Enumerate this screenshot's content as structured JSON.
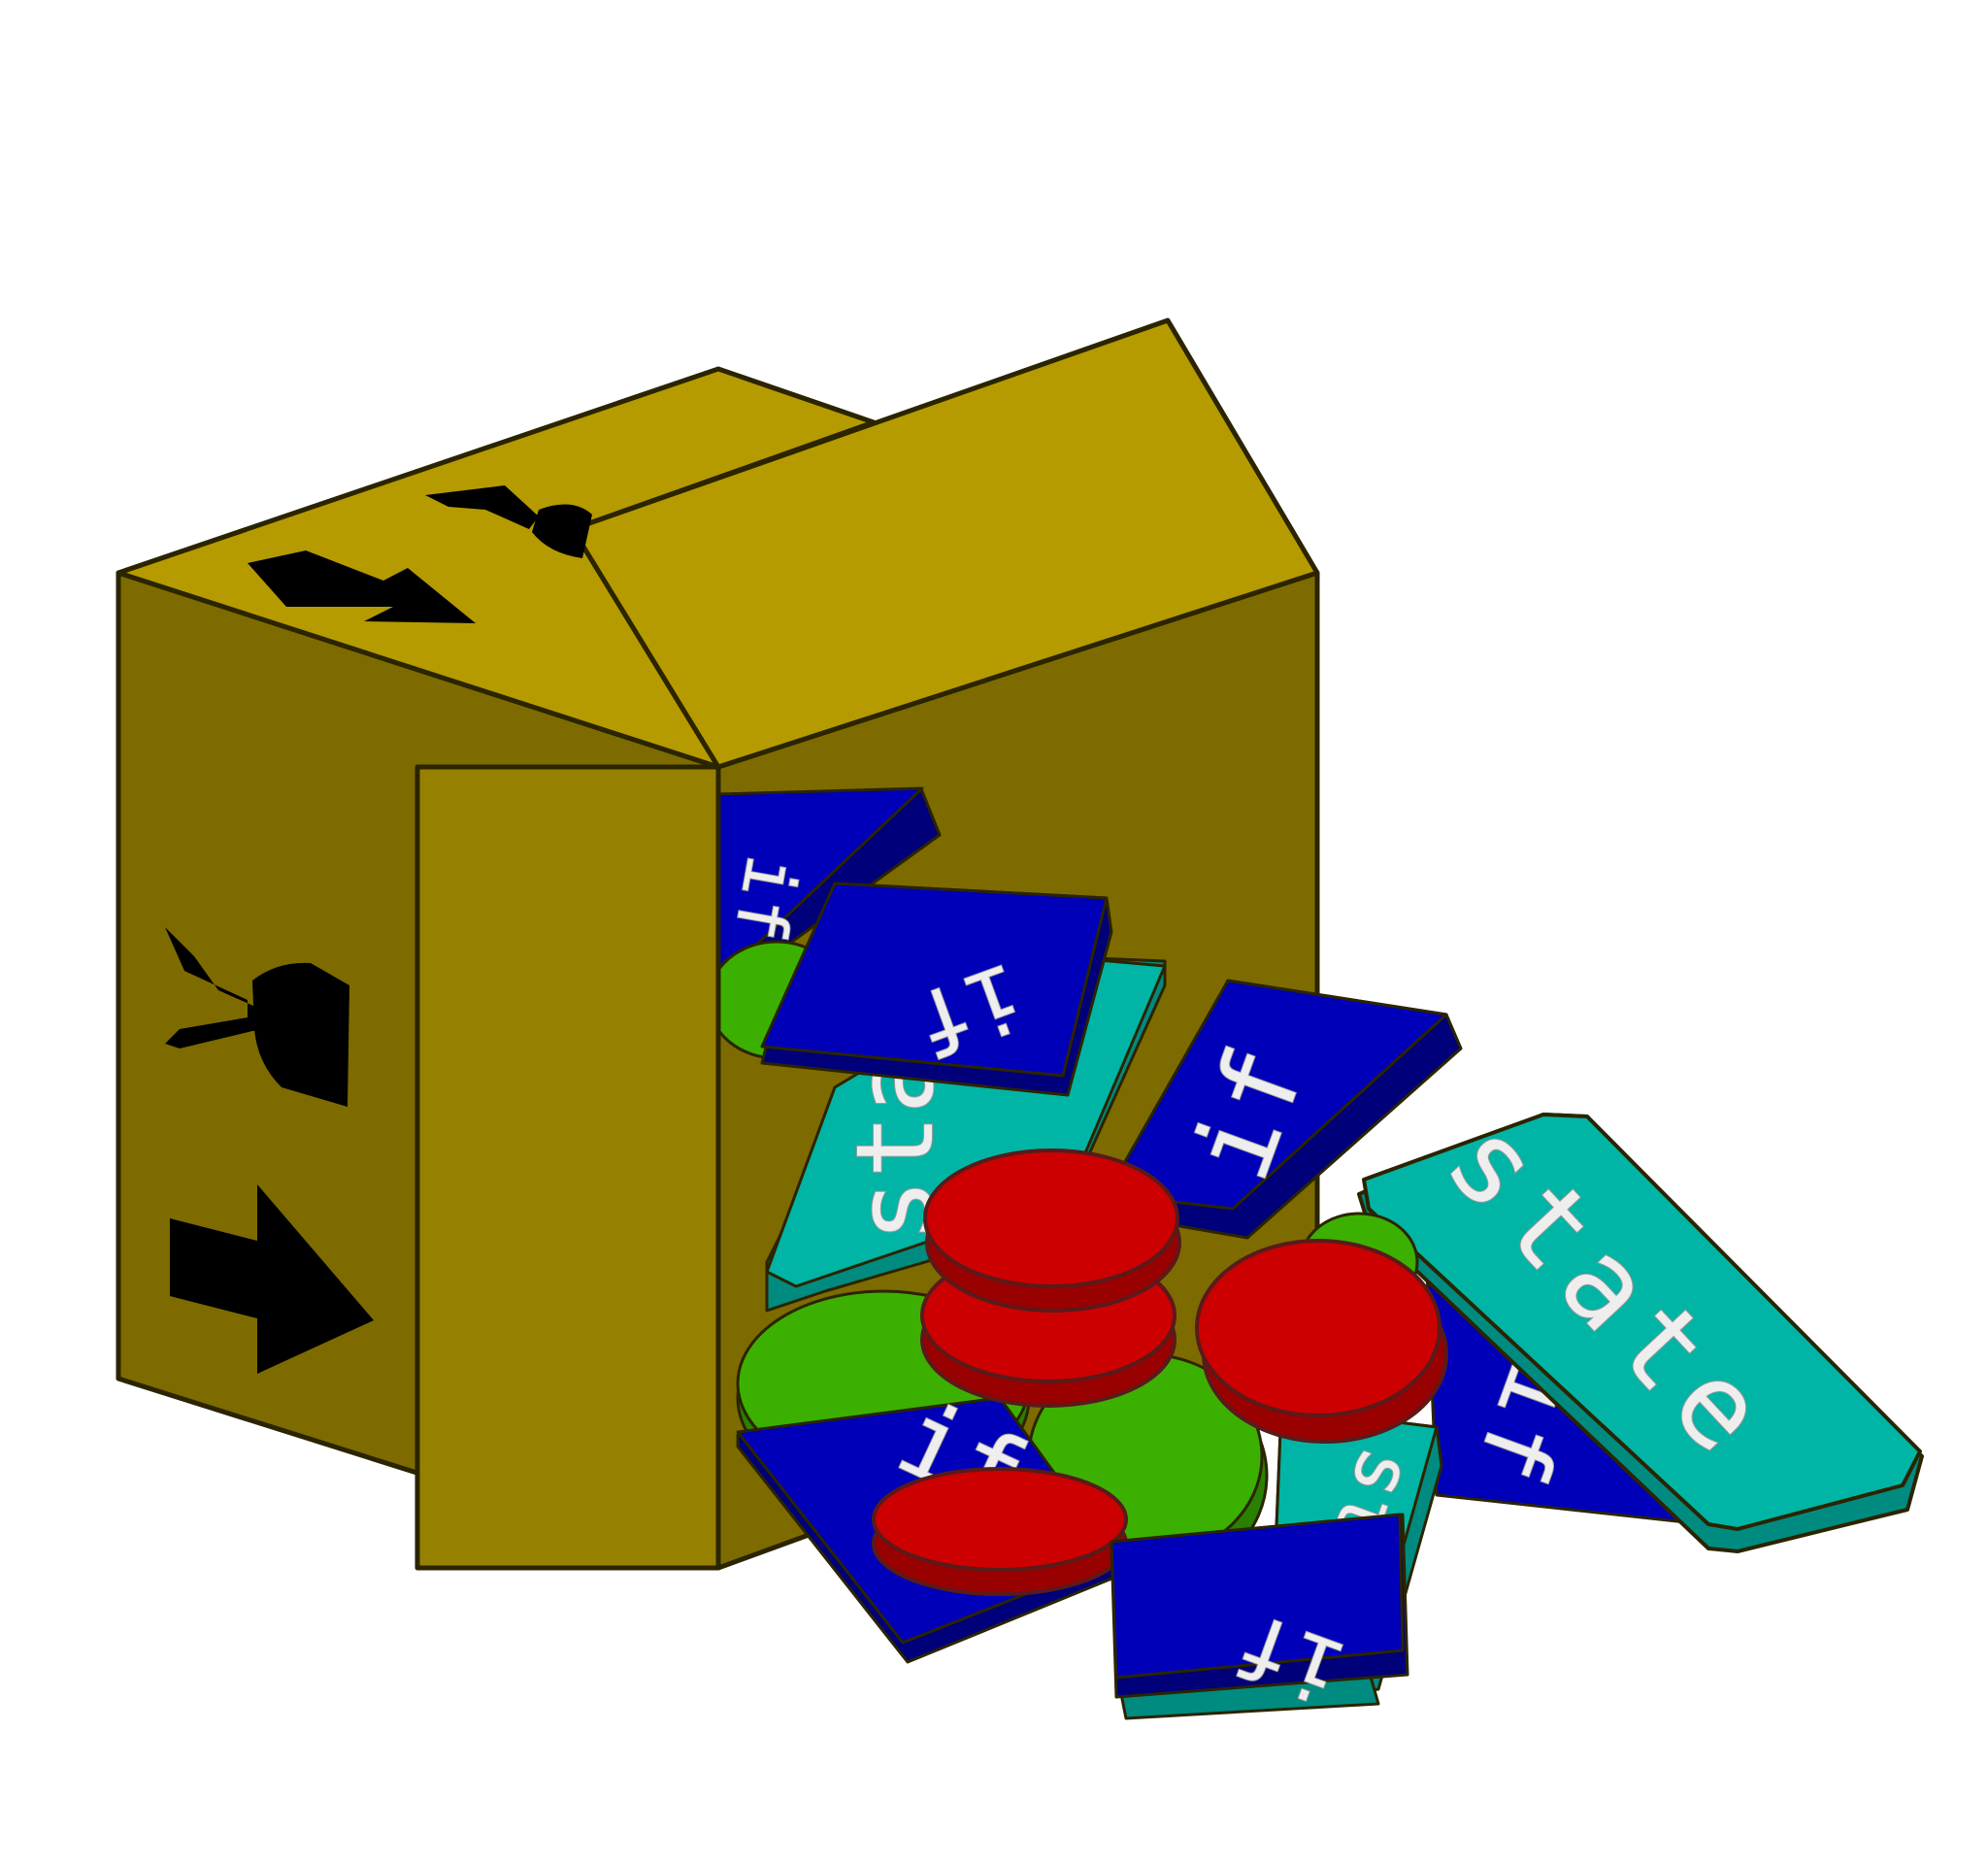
{
  "illustration": {
    "tiles": {
      "state_label": "state",
      "if_label": "if"
    },
    "colors": {
      "box_top": "#b59b00",
      "box_side_dark": "#7d6b00",
      "box_flap": "#968000",
      "box_edge": "#2b2400",
      "tile_blue": "#0000b8",
      "tile_blue_side": "#00007a",
      "tile_teal": "#00b5a5",
      "tile_teal_side": "#008b80",
      "token_red": "#cc0000",
      "token_red_side": "#990000",
      "token_green": "#3cb000",
      "token_green_side": "#2a8000",
      "symbol_black": "#000000",
      "tile_text": "#eeeeee"
    },
    "icons": [
      "fragile-glass-icon",
      "this-way-up-arrow-icon"
    ]
  }
}
